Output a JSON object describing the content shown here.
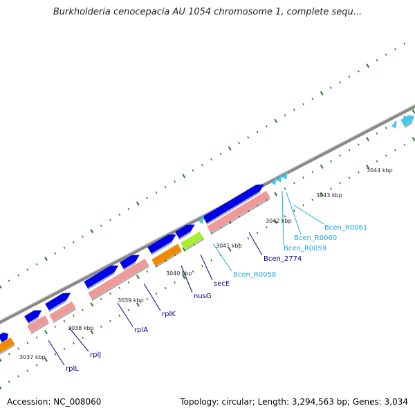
{
  "title": "Burkholderia cenocepacia AU 1054 chromosome 1, complete sequ...",
  "footer": {
    "accession": "Accession: NC_008060",
    "stats": "Topology: circular; Length: 3,294,563 bp; Genes: 3,034"
  },
  "colors": {
    "cds": "#0000e6",
    "cds_pink": "#ee9a9a",
    "trna": "#44c8f0",
    "rrna_orange": "#f08a00",
    "green": "#a6ee2e",
    "tick_green": "#1f7a1f",
    "backbone": "#888888",
    "label_dark": "#00008b",
    "label_light": "#1ea5e0"
  },
  "kbp_labels": [
    "3037 kbp",
    "3038 kbp",
    "3039 kbp",
    "3040 kbp",
    "3041 kbp",
    "3042 kbp",
    "3043 kbp",
    "3044 kbp"
  ],
  "gene_labels": [
    {
      "text": "rplL",
      "color": "dark"
    },
    {
      "text": "rplJ",
      "color": "dark"
    },
    {
      "text": "rplA",
      "color": "dark"
    },
    {
      "text": "rplK",
      "color": "dark"
    },
    {
      "text": "nusG",
      "color": "dark"
    },
    {
      "text": "secE",
      "color": "dark"
    },
    {
      "text": "Bcen_R0058",
      "color": "light"
    },
    {
      "text": "Bcen_2774",
      "color": "dark"
    },
    {
      "text": "Bcen_R0059",
      "color": "light"
    },
    {
      "text": "Bcen_R0060",
      "color": "light"
    },
    {
      "text": "Bcen_R0061",
      "color": "light"
    }
  ]
}
